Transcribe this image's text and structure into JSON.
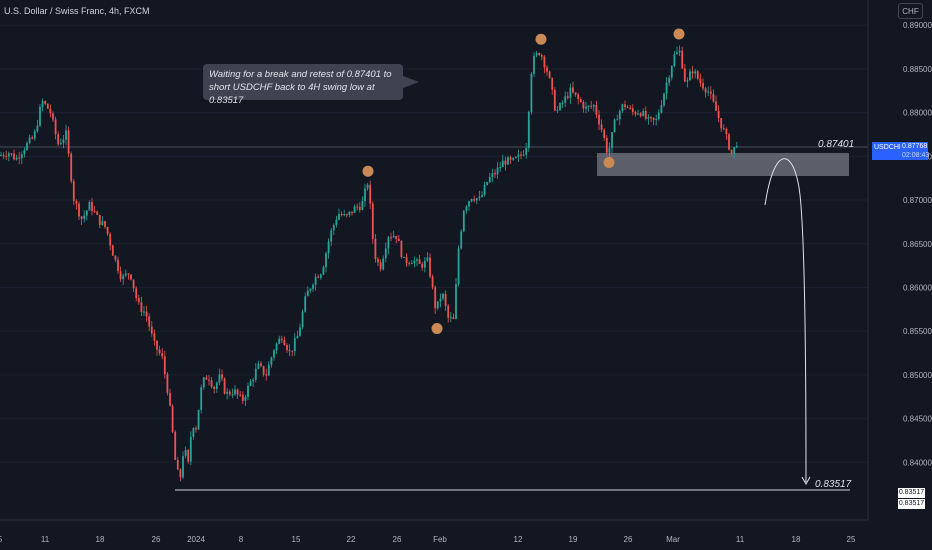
{
  "header": {
    "symbol_title": "U.S. Dollar / Swiss Franc, 4h, FXCM",
    "currency_button": "CHF"
  },
  "annotation": {
    "text": "Waiting for a break and retest of 0.87401 to short USDCHF back to 4H swing low at 0.83517",
    "level_high_label": "0.87401",
    "level_low_label": "0.83517"
  },
  "price_label": {
    "symbol": "USDCHF",
    "price": "0.87768",
    "countdown": "02:08:43"
  },
  "low_labels": [
    "0.83517",
    "0.83517"
  ],
  "colors": {
    "background": "#131722",
    "up_candle": "#26a69a",
    "down_candle": "#ef5350",
    "swing_marker": "#c98a55",
    "zone": "#d1d4dc",
    "last_price": "#2962ff"
  },
  "chart_data": {
    "type": "candlestick",
    "y_axis_ticks": [
      "0.89000",
      "0.88500",
      "0.88000",
      "0.87500",
      "0.87000",
      "0.86500",
      "0.86000",
      "0.85500",
      "0.85000",
      "0.84500",
      "0.84000"
    ],
    "x_axis_ticks": [
      "5",
      "11",
      "18",
      "26",
      "2024",
      "8",
      "15",
      "22",
      "26",
      "Feb",
      "12",
      "19",
      "26",
      "Mar",
      "11",
      "18",
      "25"
    ],
    "ylim": [
      0.8334,
      0.8922
    ],
    "close_path": [
      [
        0,
        0.8751
      ],
      [
        8,
        0.8755
      ],
      [
        16,
        0.8747
      ],
      [
        24,
        0.876
      ],
      [
        34,
        0.8772
      ],
      [
        42,
        0.8813
      ],
      [
        50,
        0.8802
      ],
      [
        58,
        0.8764
      ],
      [
        66,
        0.8775
      ],
      [
        74,
        0.87
      ],
      [
        82,
        0.8678
      ],
      [
        90,
        0.8695
      ],
      [
        98,
        0.8678
      ],
      [
        106,
        0.8668
      ],
      [
        114,
        0.8635
      ],
      [
        122,
        0.861
      ],
      [
        130,
        0.8618
      ],
      [
        138,
        0.858
      ],
      [
        146,
        0.857
      ],
      [
        154,
        0.8535
      ],
      [
        162,
        0.852
      ],
      [
        168,
        0.848
      ],
      [
        172,
        0.844
      ],
      [
        176,
        0.8393
      ],
      [
        180,
        0.838
      ],
      [
        184,
        0.842
      ],
      [
        188,
        0.8395
      ],
      [
        192,
        0.8445
      ],
      [
        196,
        0.844
      ],
      [
        202,
        0.849
      ],
      [
        208,
        0.85
      ],
      [
        214,
        0.8485
      ],
      [
        220,
        0.8498
      ],
      [
        226,
        0.8478
      ],
      [
        234,
        0.8482
      ],
      [
        242,
        0.847
      ],
      [
        250,
        0.849
      ],
      [
        258,
        0.851
      ],
      [
        266,
        0.85
      ],
      [
        274,
        0.853
      ],
      [
        282,
        0.8545
      ],
      [
        290,
        0.8525
      ],
      [
        298,
        0.8545
      ],
      [
        306,
        0.859
      ],
      [
        314,
        0.861
      ],
      [
        322,
        0.862
      ],
      [
        330,
        0.866
      ],
      [
        338,
        0.8685
      ],
      [
        346,
        0.868
      ],
      [
        354,
        0.869
      ],
      [
        362,
        0.8695
      ],
      [
        368,
        0.8722
      ],
      [
        374,
        0.864
      ],
      [
        380,
        0.8622
      ],
      [
        388,
        0.866
      ],
      [
        396,
        0.866
      ],
      [
        404,
        0.863
      ],
      [
        412,
        0.8632
      ],
      [
        420,
        0.8625
      ],
      [
        428,
        0.863
      ],
      [
        436,
        0.8573
      ],
      [
        442,
        0.8595
      ],
      [
        448,
        0.8565
      ],
      [
        454,
        0.8562
      ],
      [
        458,
        0.864
      ],
      [
        464,
        0.8692
      ],
      [
        472,
        0.8705
      ],
      [
        480,
        0.87
      ],
      [
        488,
        0.8723
      ],
      [
        496,
        0.8732
      ],
      [
        504,
        0.8745
      ],
      [
        512,
        0.8743
      ],
      [
        520,
        0.875
      ],
      [
        526,
        0.876
      ],
      [
        532,
        0.8858
      ],
      [
        540,
        0.8871
      ],
      [
        548,
        0.8845
      ],
      [
        556,
        0.88
      ],
      [
        562,
        0.881
      ],
      [
        570,
        0.8825
      ],
      [
        578,
        0.8815
      ],
      [
        586,
        0.8805
      ],
      [
        594,
        0.8808
      ],
      [
        602,
        0.878
      ],
      [
        608,
        0.8752
      ],
      [
        616,
        0.8795
      ],
      [
        624,
        0.881
      ],
      [
        632,
        0.88
      ],
      [
        640,
        0.8802
      ],
      [
        648,
        0.879
      ],
      [
        656,
        0.879
      ],
      [
        662,
        0.8815
      ],
      [
        668,
        0.884
      ],
      [
        674,
        0.8865
      ],
      [
        680,
        0.887
      ],
      [
        686,
        0.883
      ],
      [
        692,
        0.885
      ],
      [
        700,
        0.8835
      ],
      [
        708,
        0.8825
      ],
      [
        714,
        0.8808
      ],
      [
        720,
        0.879
      ],
      [
        726,
        0.8772
      ],
      [
        732,
        0.8752
      ],
      [
        738,
        0.877
      ]
    ],
    "swing_points": [
      {
        "date": "Feb 14",
        "price": 0.8884
      },
      {
        "date": "Mar 1",
        "price": 0.889
      },
      {
        "date": "Feb 23",
        "price": 0.8743
      },
      {
        "date": "Jan 22",
        "price": 0.8733
      },
      {
        "date": "Feb 1",
        "price": 0.8553
      }
    ],
    "resistance_zone": [
      0.8745,
      0.8774
    ],
    "levels": [
      0.87401,
      0.83517
    ]
  }
}
